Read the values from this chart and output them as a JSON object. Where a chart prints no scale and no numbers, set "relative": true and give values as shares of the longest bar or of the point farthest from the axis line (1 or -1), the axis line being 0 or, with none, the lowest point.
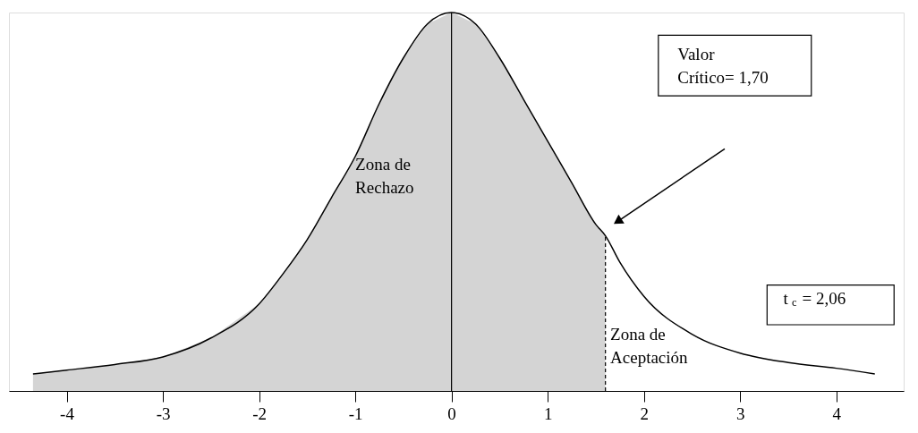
{
  "chart_data": {
    "type": "line",
    "relative": true,
    "marker": "none",
    "xlim": [
      -4.6,
      4.7
    ],
    "xticks": [
      -4,
      -3,
      -2,
      -1,
      0,
      1,
      2,
      3,
      4
    ],
    "series": [
      {
        "type": "area",
        "color": "#d4d4d4",
        "x": [
          -4.35,
          -4,
          -3.5,
          -3,
          -2.5,
          -2,
          -1.75,
          -1.5,
          -1.25,
          -1,
          -0.75,
          -0.5,
          -0.25,
          0,
          0.25,
          0.5,
          0.75,
          1,
          1.25,
          1.5,
          1.6
        ],
        "values": [
          0.045,
          0.055,
          0.07,
          0.09,
          0.14,
          0.23,
          0.31,
          0.4,
          0.51,
          0.62,
          0.76,
          0.88,
          0.97,
          1,
          0.97,
          0.88,
          0.77,
          0.66,
          0.55,
          0.44,
          0.41
        ]
      },
      {
        "color": "#000000",
        "x": [
          -4.35,
          -4,
          -3.5,
          -3,
          -2.5,
          -2,
          -1.75,
          -1.5,
          -1.25,
          -1,
          -0.75,
          -0.5,
          -0.25,
          0,
          0.25,
          0.5,
          0.75,
          1,
          1.25,
          1.5,
          1.6,
          1.75,
          2,
          2.5,
          3,
          3.5,
          4,
          4.4
        ],
        "values": [
          0.045,
          0.055,
          0.07,
          0.09,
          0.14,
          0.23,
          0.31,
          0.4,
          0.51,
          0.62,
          0.76,
          0.88,
          0.97,
          1,
          0.97,
          0.88,
          0.77,
          0.66,
          0.55,
          0.44,
          0.41,
          0.34,
          0.25,
          0.15,
          0.1,
          0.075,
          0.06,
          0.045
        ]
      }
    ],
    "ref_lines": [
      {
        "axis": "x",
        "value": 0,
        "color": "#000000"
      },
      {
        "axis": "x",
        "value": 1.6,
        "color": "#000000",
        "line_style": "dashed"
      }
    ],
    "annotations": [
      "Zona de\nRechazo",
      "Zona de\nAceptación",
      "Valor\nCrítico= 1,70",
      "t$_{c}$ = 2,06"
    ]
  }
}
